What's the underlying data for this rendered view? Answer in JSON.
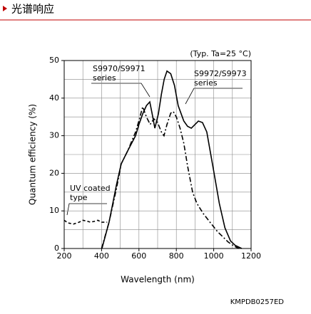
{
  "header": {
    "title": "光谱响应"
  },
  "chart_data": {
    "type": "line",
    "note": "(Typ. Ta=25 °C)",
    "x_label": "Wavelength (nm)",
    "y_label": "Quantum efficiency (%)",
    "xlim": [
      200,
      1200
    ],
    "ylim": [
      0,
      50
    ],
    "xticks": [
      200,
      400,
      600,
      800,
      1000,
      1200
    ],
    "yticks": [
      0,
      10,
      20,
      30,
      40,
      50
    ],
    "minor_xticks": [
      300,
      500,
      700,
      900,
      1100
    ],
    "minor_yticks": [
      5,
      15,
      25,
      35,
      45
    ],
    "grid": true,
    "series": [
      {
        "name": [
          "S9970/S9971",
          "series"
        ],
        "color": "#000000",
        "dash": "dashdot",
        "x": [
          400,
          440,
          480,
          505,
          540,
          582,
          600,
          620,
          640,
          660,
          680,
          700,
          720,
          734,
          750,
          770,
          784,
          800,
          820,
          840,
          860,
          887,
          910,
          944,
          980,
          1020,
          1078,
          1110,
          1135
        ],
        "values": [
          0,
          7,
          16,
          22.5,
          26,
          31,
          34,
          37.7,
          35,
          33,
          34.5,
          33.5,
          31,
          30,
          33,
          36,
          36.4,
          35,
          32,
          28,
          22,
          15,
          12,
          9.3,
          7,
          4.5,
          1.7,
          0.6,
          0
        ]
      },
      {
        "name": [
          "S9972/S9973",
          "series"
        ],
        "color": "#000000",
        "dash": "solid",
        "x": [
          402,
          440,
          480,
          505,
          540,
          582,
          600,
          620,
          640,
          658,
          670,
          685,
          704,
          720,
          735,
          750,
          770,
          790,
          810,
          840,
          860,
          880,
          900,
          918,
          940,
          963,
          1000,
          1030,
          1060,
          1090,
          1116,
          1150
        ],
        "values": [
          0,
          7,
          17,
          22.5,
          26,
          30,
          33,
          35.8,
          38,
          39,
          36,
          32,
          35.8,
          41,
          45,
          47.2,
          46.5,
          43.4,
          38,
          33.9,
          32.5,
          32,
          33,
          33.9,
          33.5,
          31,
          20.6,
          12,
          5.5,
          2,
          0.8,
          0
        ]
      },
      {
        "name": [
          "UV coated",
          "type"
        ],
        "color": "#000000",
        "dash": "dashed",
        "x": [
          200,
          220,
          250,
          280,
          300,
          320,
          340,
          360,
          380,
          400,
          430
        ],
        "values": [
          7.5,
          6.8,
          6.5,
          7,
          7.5,
          7.3,
          7,
          7.2,
          7.5,
          7,
          7
        ]
      }
    ]
  },
  "footer": {
    "code": "KMPDB0257ED"
  }
}
